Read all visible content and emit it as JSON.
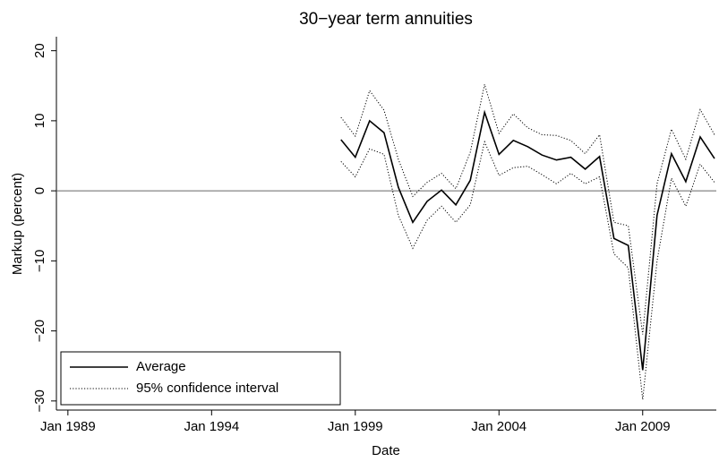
{
  "chart_data": {
    "type": "line",
    "title": "30−year term annuities",
    "xlabel": "Date",
    "ylabel": "Markup (percent)",
    "x": [
      1998.5,
      1999,
      1999.5,
      2000,
      2000.5,
      2001,
      2001.5,
      2002,
      2002.5,
      2003,
      2003.5,
      2004,
      2004.5,
      2005,
      2005.5,
      2006,
      2006.5,
      2007,
      2007.5,
      2008,
      2008.5,
      2009,
      2009.5,
      2010,
      2010.5,
      2011,
      2011.5
    ],
    "series": [
      {
        "name": "Average",
        "color": "#000000",
        "style": "solid",
        "values": [
          7.3,
          4.8,
          10,
          8.3,
          0.5,
          -4.5,
          -1.5,
          0.1,
          -2,
          1.5,
          11.2,
          5.2,
          7.2,
          6.3,
          5.1,
          4.4,
          4.8,
          3.1,
          4.9,
          -6.8,
          -7.8,
          -25.6,
          -3.5,
          5.3,
          1.3,
          7.7,
          4.6
        ]
      },
      {
        "name": "95% confidence interval",
        "color": "#000000",
        "style": "dotted",
        "upper": [
          10.5,
          7.8,
          14.3,
          11.5,
          4.5,
          -0.8,
          1.2,
          2.5,
          0.3,
          5.5,
          15.2,
          8.2,
          11.0,
          9.0,
          8.0,
          7.9,
          7.2,
          5.3,
          8.0,
          -4.5,
          -5.0,
          -20.5,
          1.0,
          8.8,
          4.5,
          11.6,
          8.0
        ],
        "lower": [
          4.2,
          2.0,
          6.0,
          5.2,
          -3.5,
          -8.2,
          -4.2,
          -2.2,
          -4.5,
          -2.0,
          7.0,
          2.2,
          3.3,
          3.5,
          2.3,
          1.0,
          2.5,
          1.0,
          2.0,
          -9.0,
          -11.0,
          -29.8,
          -10.0,
          1.8,
          -2.2,
          3.8,
          1.2
        ]
      }
    ],
    "xlim": [
      1988.6,
      2011.5
    ],
    "ylim": [
      -31.3,
      22
    ],
    "xticks": [
      {
        "value": 1989,
        "label": "Jan 1989"
      },
      {
        "value": 1994,
        "label": "Jan 1994"
      },
      {
        "value": 1999,
        "label": "Jan 1999"
      },
      {
        "value": 2004,
        "label": "Jan 2004"
      },
      {
        "value": 2009,
        "label": "Jan 2009"
      }
    ],
    "yticks": [
      {
        "value": -30,
        "label": "−30"
      },
      {
        "value": -20,
        "label": "−20"
      },
      {
        "value": -10,
        "label": "−10"
      },
      0,
      10,
      20
    ],
    "reference_line": 0,
    "reference_color": "#666666",
    "legend": "lower-left"
  }
}
